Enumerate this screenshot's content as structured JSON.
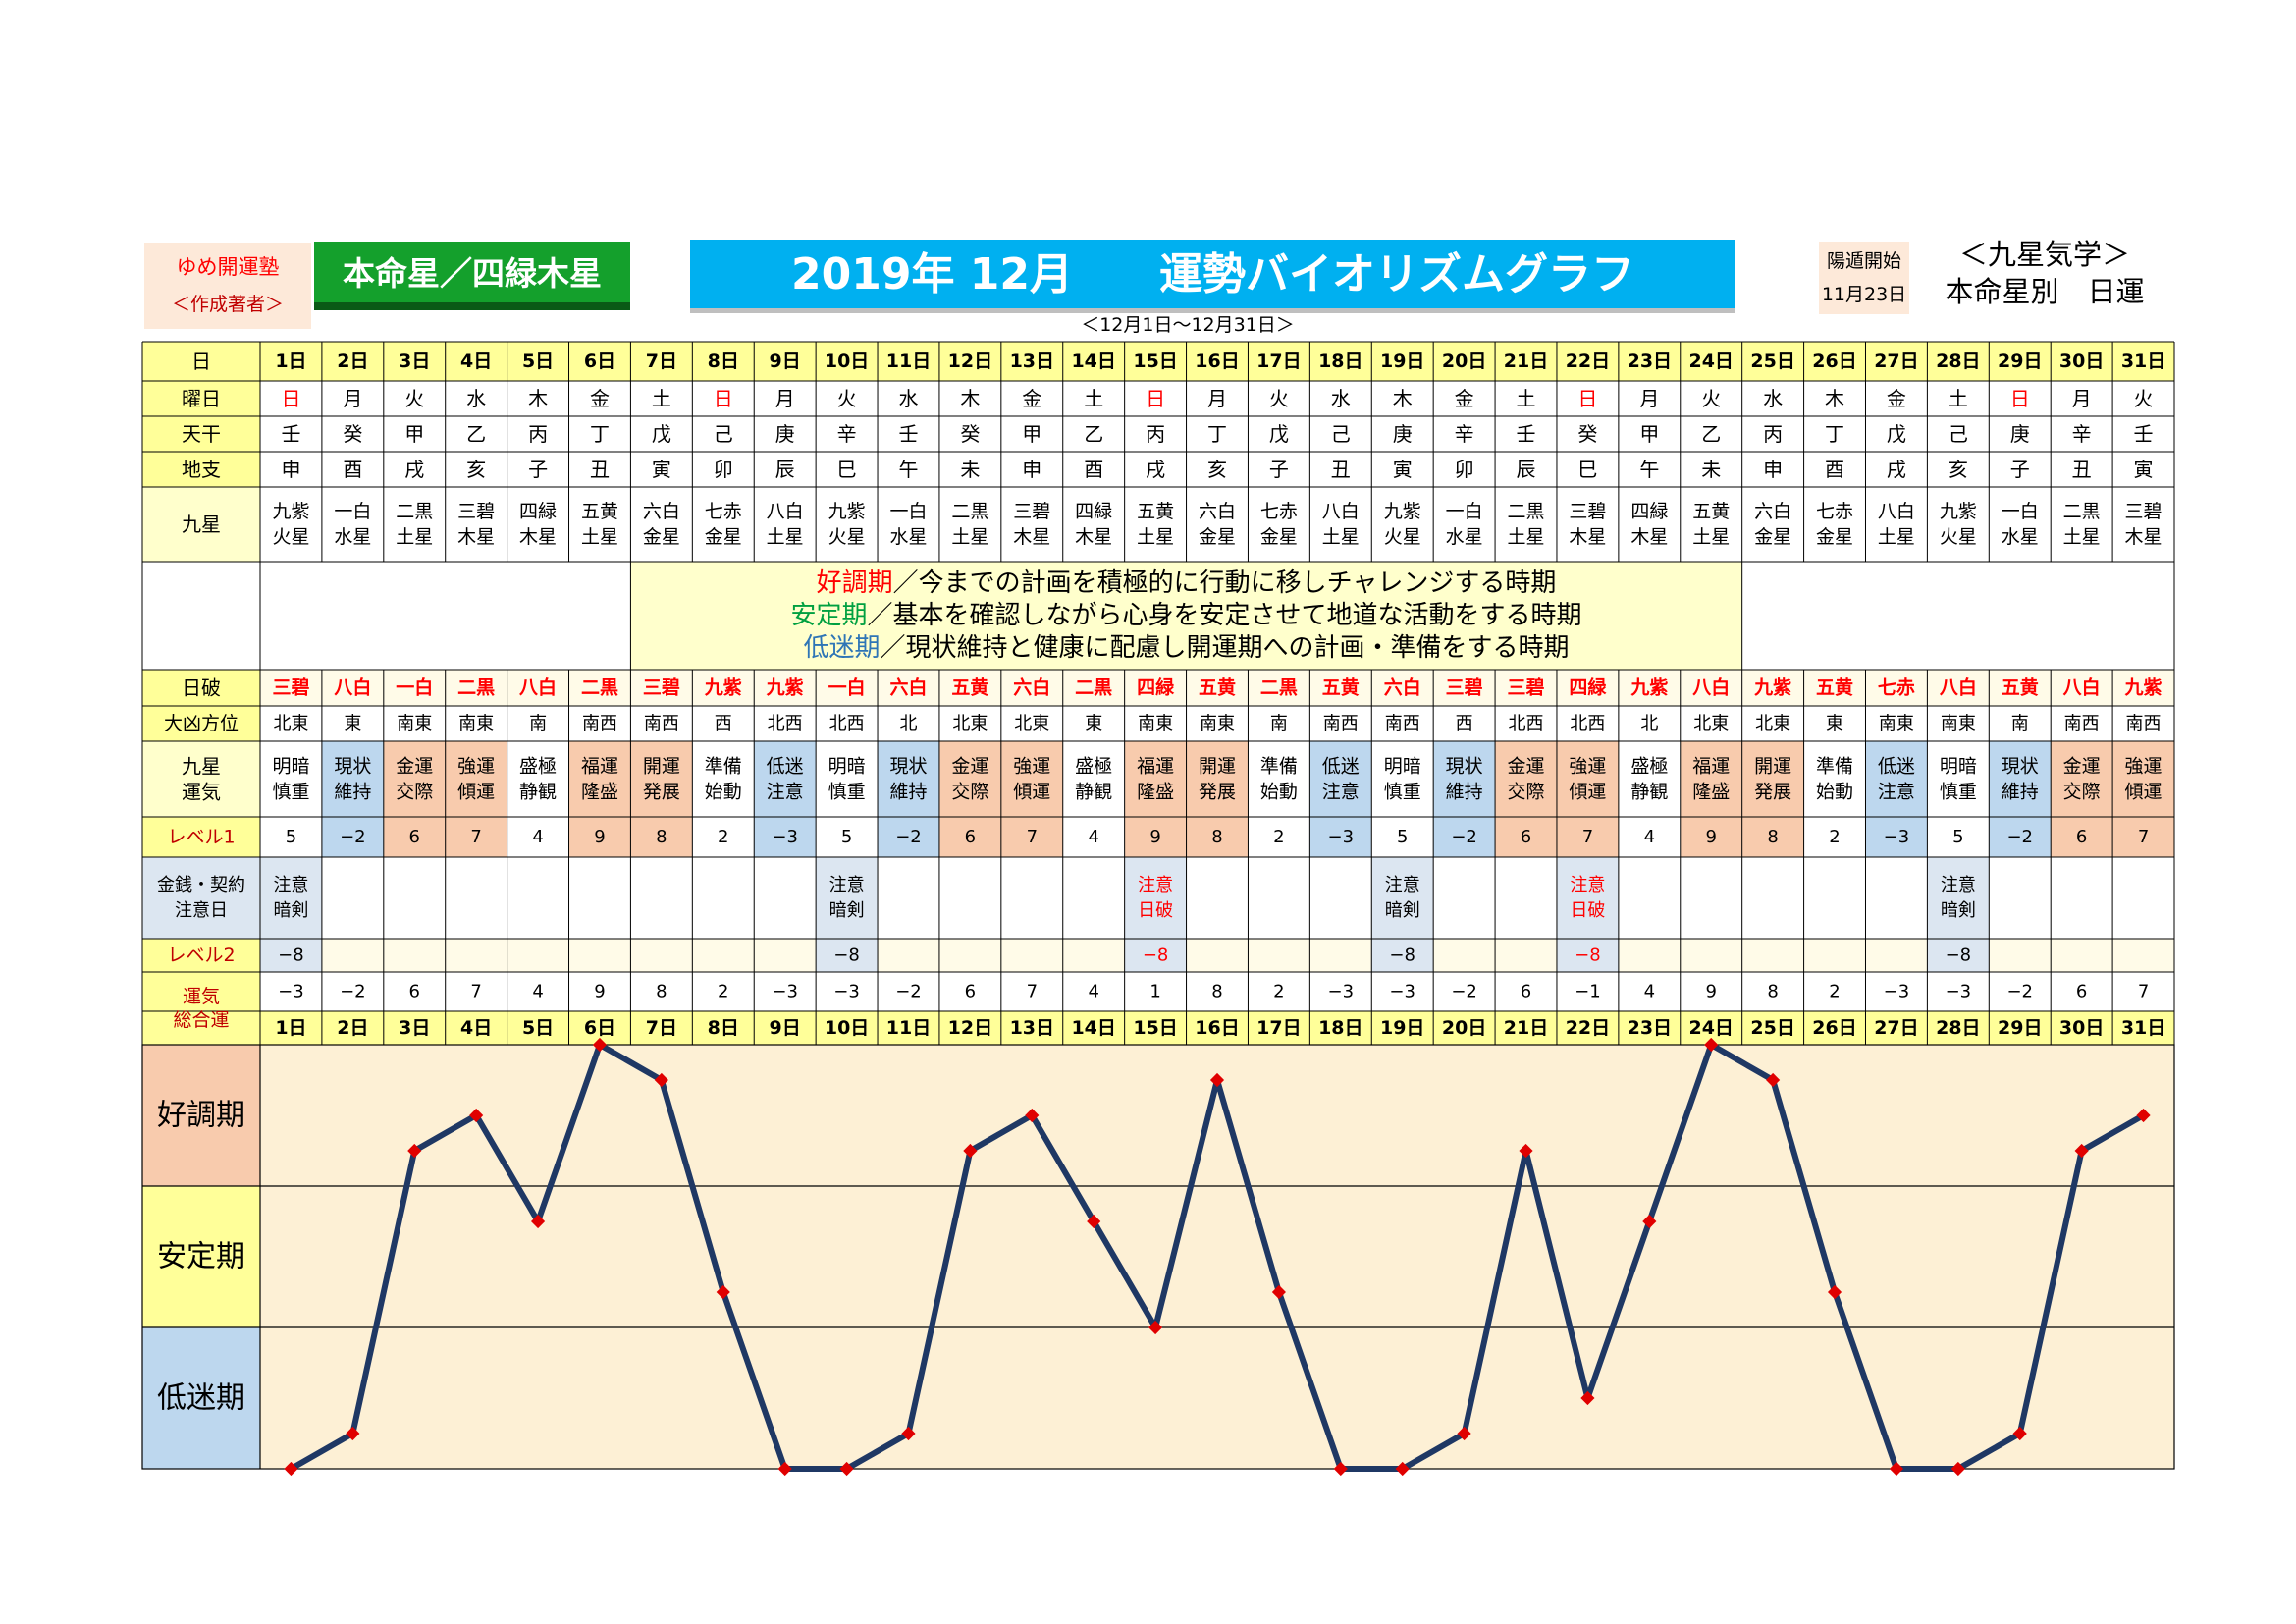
{
  "header": {
    "author_top": "ゆめ開運塾",
    "author_bottom": "＜作成著者＞",
    "honmei": "本命星／四緑木星",
    "title": "2019年 12月　　運勢バイオリズムグラフ",
    "yang_label": "陽遁開始",
    "yang_date": "11月23日",
    "kyusei_title": "＜九星気学＞",
    "kyusei_sub": "本命星別　日運",
    "range": "＜12月1日～12月31日＞"
  },
  "row_labels": {
    "day": "日",
    "weekday": "曜日",
    "tenkan": "天干",
    "chishi": "地支",
    "kyusei": "九星",
    "nippa": "日破",
    "direction": "大凶方位",
    "unki": [
      "九星",
      "運気"
    ],
    "level1": "レベル1",
    "money": [
      "金銭・契約",
      "注意日"
    ],
    "level2": "レベル2",
    "total": [
      "運気",
      "総合運"
    ]
  },
  "legend": [
    {
      "term": "好調期",
      "text": "／今までの計画を積極的に行動に移しチャレンジする時期",
      "color": "#ff0000"
    },
    {
      "term": "安定期",
      "text": "／基本を確認しながら心身を安定させて地道な活動をする時期",
      "color": "#00a040"
    },
    {
      "term": "低迷期",
      "text": "／現状維持と健康に配慮し開運期への計画・準備をする時期",
      "color": "#2e75b6"
    }
  ],
  "days": [
    "1日",
    "2日",
    "3日",
    "4日",
    "5日",
    "6日",
    "7日",
    "8日",
    "9日",
    "10日",
    "11日",
    "12日",
    "13日",
    "14日",
    "15日",
    "16日",
    "17日",
    "18日",
    "19日",
    "20日",
    "21日",
    "22日",
    "23日",
    "24日",
    "25日",
    "26日",
    "27日",
    "28日",
    "29日",
    "30日",
    "31日"
  ],
  "weekdays": [
    "日",
    "月",
    "火",
    "水",
    "木",
    "金",
    "土",
    "日",
    "月",
    "火",
    "水",
    "木",
    "金",
    "土",
    "日",
    "月",
    "火",
    "水",
    "木",
    "金",
    "土",
    "日",
    "月",
    "火",
    "水",
    "木",
    "金",
    "土",
    "日",
    "月",
    "火"
  ],
  "tenkan": [
    "壬",
    "癸",
    "甲",
    "乙",
    "丙",
    "丁",
    "戊",
    "己",
    "庚",
    "辛",
    "壬",
    "癸",
    "甲",
    "乙",
    "丙",
    "丁",
    "戊",
    "己",
    "庚",
    "辛",
    "壬",
    "癸",
    "甲",
    "乙",
    "丙",
    "丁",
    "戊",
    "己",
    "庚",
    "辛",
    "壬"
  ],
  "chishi": [
    "申",
    "酉",
    "戌",
    "亥",
    "子",
    "丑",
    "寅",
    "卯",
    "辰",
    "巳",
    "午",
    "未",
    "申",
    "酉",
    "戌",
    "亥",
    "子",
    "丑",
    "寅",
    "卯",
    "辰",
    "巳",
    "午",
    "未",
    "申",
    "酉",
    "戌",
    "亥",
    "子",
    "丑",
    "寅"
  ],
  "kyusei": [
    [
      "九紫",
      "火星"
    ],
    [
      "一白",
      "水星"
    ],
    [
      "二黒",
      "土星"
    ],
    [
      "三碧",
      "木星"
    ],
    [
      "四緑",
      "木星"
    ],
    [
      "五黄",
      "土星"
    ],
    [
      "六白",
      "金星"
    ],
    [
      "七赤",
      "金星"
    ],
    [
      "八白",
      "土星"
    ],
    [
      "九紫",
      "火星"
    ],
    [
      "一白",
      "水星"
    ],
    [
      "二黒",
      "土星"
    ],
    [
      "三碧",
      "木星"
    ],
    [
      "四緑",
      "木星"
    ],
    [
      "五黄",
      "土星"
    ],
    [
      "六白",
      "金星"
    ],
    [
      "七赤",
      "金星"
    ],
    [
      "八白",
      "土星"
    ],
    [
      "九紫",
      "火星"
    ],
    [
      "一白",
      "水星"
    ],
    [
      "二黒",
      "土星"
    ],
    [
      "三碧",
      "木星"
    ],
    [
      "四緑",
      "木星"
    ],
    [
      "五黄",
      "土星"
    ],
    [
      "六白",
      "金星"
    ],
    [
      "七赤",
      "金星"
    ],
    [
      "八白",
      "土星"
    ],
    [
      "九紫",
      "火星"
    ],
    [
      "一白",
      "水星"
    ],
    [
      "二黒",
      "土星"
    ],
    [
      "三碧",
      "木星"
    ]
  ],
  "nippa": [
    "三碧",
    "八白",
    "一白",
    "二黒",
    "八白",
    "二黒",
    "三碧",
    "九紫",
    "九紫",
    "一白",
    "六白",
    "五黄",
    "六白",
    "二黒",
    "四緑",
    "五黄",
    "二黒",
    "五黄",
    "六白",
    "三碧",
    "三碧",
    "四緑",
    "九紫",
    "八白",
    "九紫",
    "五黄",
    "七赤",
    "八白",
    "五黄",
    "八白",
    "九紫"
  ],
  "direction": [
    "北東",
    "東",
    "南東",
    "南東",
    "南",
    "南西",
    "南西",
    "西",
    "北西",
    "北西",
    "北",
    "北東",
    "北東",
    "東",
    "南東",
    "南東",
    "南",
    "南西",
    "南西",
    "西",
    "北西",
    "北西",
    "北",
    "北東",
    "北東",
    "東",
    "南東",
    "南東",
    "南",
    "南西",
    "南西"
  ],
  "unki": [
    [
      "明暗",
      "慎重"
    ],
    [
      "現状",
      "維持"
    ],
    [
      "金運",
      "交際"
    ],
    [
      "強運",
      "傾運"
    ],
    [
      "盛極",
      "静観"
    ],
    [
      "福運",
      "隆盛"
    ],
    [
      "開運",
      "発展"
    ],
    [
      "準備",
      "始動"
    ],
    [
      "低迷",
      "注意"
    ],
    [
      "明暗",
      "慎重"
    ],
    [
      "現状",
      "維持"
    ],
    [
      "金運",
      "交際"
    ],
    [
      "強運",
      "傾運"
    ],
    [
      "盛極",
      "静観"
    ],
    [
      "福運",
      "隆盛"
    ],
    [
      "開運",
      "発展"
    ],
    [
      "準備",
      "始動"
    ],
    [
      "低迷",
      "注意"
    ],
    [
      "明暗",
      "慎重"
    ],
    [
      "現状",
      "維持"
    ],
    [
      "金運",
      "交際"
    ],
    [
      "強運",
      "傾運"
    ],
    [
      "盛極",
      "静観"
    ],
    [
      "福運",
      "隆盛"
    ],
    [
      "開運",
      "発展"
    ],
    [
      "準備",
      "始動"
    ],
    [
      "低迷",
      "注意"
    ],
    [
      "明暗",
      "慎重"
    ],
    [
      "現状",
      "維持"
    ],
    [
      "金運",
      "交際"
    ],
    [
      "強運",
      "傾運"
    ]
  ],
  "level1": [
    "5",
    "−2",
    "6",
    "7",
    "4",
    "9",
    "8",
    "2",
    "−3",
    "5",
    "−2",
    "6",
    "7",
    "4",
    "9",
    "8",
    "2",
    "−3",
    "5",
    "−2",
    "6",
    "7",
    "4",
    "9",
    "8",
    "2",
    "−3",
    "5",
    "−2",
    "6",
    "7"
  ],
  "money": [
    [
      "注意",
      "暗剣"
    ],
    null,
    null,
    null,
    null,
    null,
    null,
    null,
    null,
    [
      "注意",
      "暗剣"
    ],
    null,
    null,
    null,
    null,
    [
      "注意",
      "日破"
    ],
    null,
    null,
    null,
    [
      "注意",
      "暗剣"
    ],
    null,
    null,
    [
      "注意",
      "日破"
    ],
    null,
    null,
    null,
    null,
    null,
    [
      "注意",
      "暗剣"
    ],
    null,
    null,
    null
  ],
  "level2": [
    "−8",
    "",
    "",
    "",
    "",
    "",
    "",
    "",
    "",
    "−8",
    "",
    "",
    "",
    "",
    "−8",
    "",
    "",
    "",
    "−8",
    "",
    "",
    "−8",
    "",
    "",
    "",
    "",
    "",
    "−8",
    "",
    "",
    ""
  ],
  "total": [
    "−3",
    "−2",
    "6",
    "7",
    "4",
    "9",
    "8",
    "2",
    "−3",
    "−3",
    "−2",
    "6",
    "7",
    "4",
    "1",
    "8",
    "2",
    "−3",
    "−3",
    "−2",
    "6",
    "−1",
    "4",
    "9",
    "8",
    "2",
    "−3",
    "−3",
    "−2",
    "6",
    "7"
  ],
  "chart_data": {
    "type": "line",
    "x": [
      "1日",
      "2日",
      "3日",
      "4日",
      "5日",
      "6日",
      "7日",
      "8日",
      "9日",
      "10日",
      "11日",
      "12日",
      "13日",
      "14日",
      "15日",
      "16日",
      "17日",
      "18日",
      "19日",
      "20日",
      "21日",
      "22日",
      "23日",
      "24日",
      "25日",
      "26日",
      "27日",
      "28日",
      "29日",
      "30日",
      "31日"
    ],
    "values": [
      -3,
      -2,
      6,
      7,
      4,
      9,
      8,
      2,
      -3,
      -3,
      -2,
      6,
      7,
      4,
      1,
      8,
      2,
      -3,
      -3,
      -2,
      6,
      -1,
      4,
      9,
      8,
      2,
      -3,
      -3,
      -2,
      6,
      7
    ],
    "ylim": [
      -3,
      9
    ],
    "bands": [
      {
        "label": "好調期",
        "color": "#f8cbad"
      },
      {
        "label": "安定期",
        "color": "#ffff99"
      },
      {
        "label": "低迷期",
        "color": "#bdd7ee"
      }
    ],
    "line_color": "#1f3864",
    "marker_color": "#e00000",
    "plot_background": "#fdf0d5",
    "grid": true
  }
}
